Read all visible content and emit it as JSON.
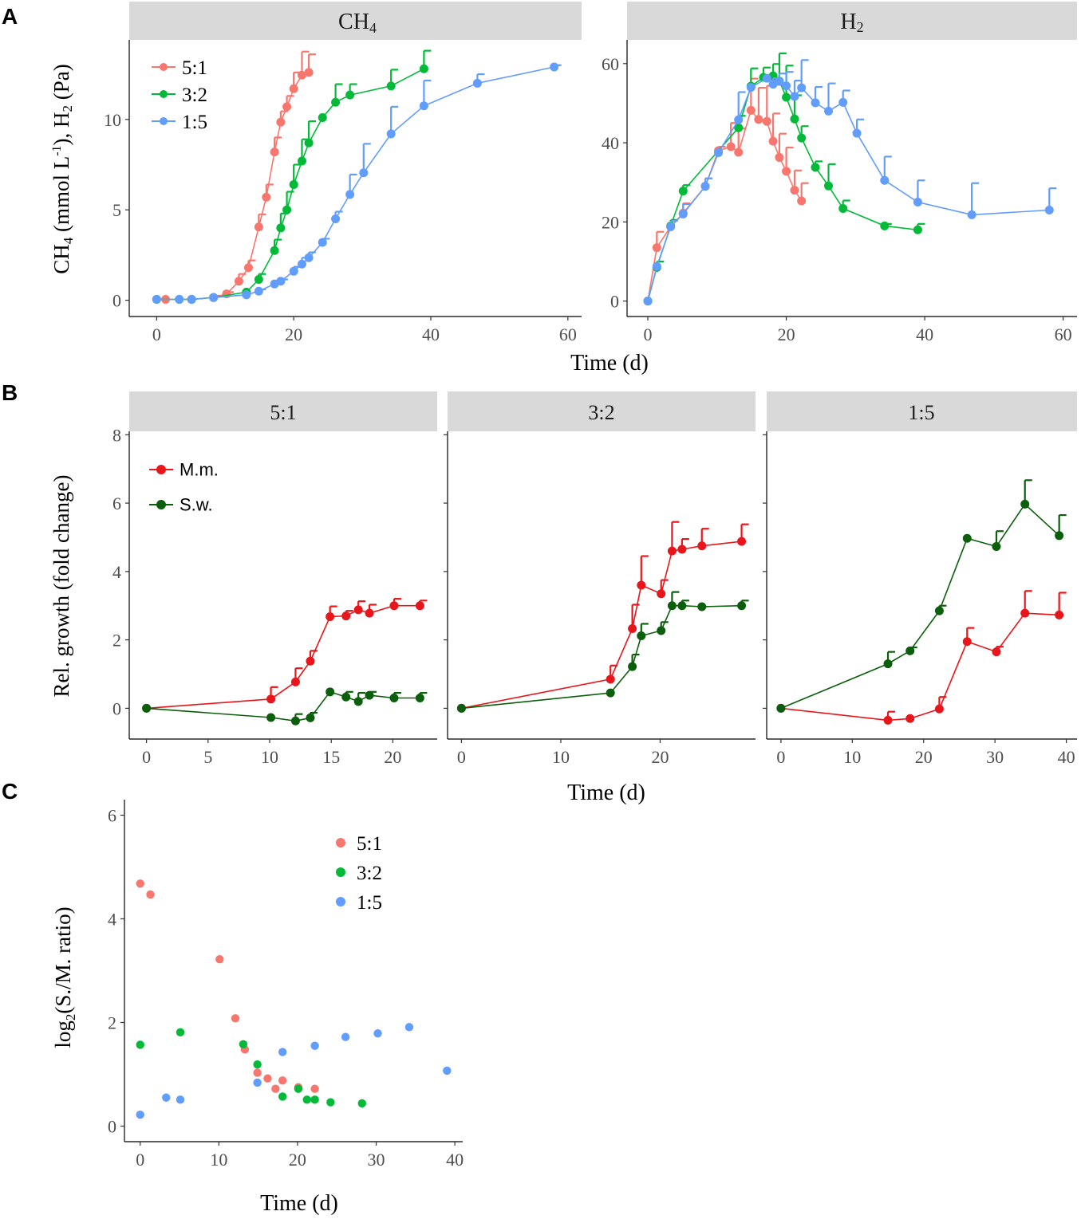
{
  "panel_labels": [
    "A",
    "B",
    "C"
  ],
  "chart_data": [
    {
      "id": "A-CH4",
      "type": "line",
      "strip_title": "CH4",
      "ylabel": "CH4 (mmol L-1), H2 (Pa)",
      "xlabel": "Time (d)",
      "xlim": [
        -4,
        62
      ],
      "ylim": [
        -0.9,
        14.4
      ],
      "xticks": [
        0,
        20,
        40,
        60
      ],
      "yticks": [
        0,
        5,
        10
      ],
      "legend": {
        "position": "top-left",
        "entries": [
          "5:1",
          "3:2",
          "1:5"
        ]
      },
      "series": [
        {
          "name": "5:1",
          "color": "#F8766D",
          "x": [
            0,
            1.3,
            5.1,
            8.3,
            10.2,
            12,
            13.4,
            14.9,
            16,
            17.2,
            18.1,
            19,
            20,
            21.2,
            22.2
          ],
          "y": [
            0.05,
            0.05,
            0.05,
            0.15,
            0.35,
            1.05,
            1.8,
            4.05,
            5.7,
            8.2,
            9.85,
            10.7,
            11.7,
            12.45,
            12.6
          ],
          "err": [
            0,
            0,
            0,
            0.1,
            0.1,
            0.4,
            0.4,
            0.7,
            0.7,
            0.8,
            0.6,
            0.6,
            0.9,
            1.3,
            1
          ]
        },
        {
          "name": "3:2",
          "color": "#00BA38",
          "x": [
            0,
            3.3,
            5.1,
            8.3,
            13.1,
            14.9,
            17.2,
            18.1,
            19,
            20,
            21.2,
            22.2,
            24.2,
            26.1,
            28.2,
            34.2,
            39
          ],
          "y": [
            0.05,
            0.05,
            0.05,
            0.15,
            0.45,
            1.15,
            2.75,
            4,
            5,
            6.4,
            7.7,
            8.7,
            10.1,
            10.95,
            11.35,
            11.85,
            12.8
          ],
          "err": [
            0,
            0,
            0,
            0,
            0,
            0.3,
            0.6,
            0.8,
            1,
            1.1,
            1.2,
            1.2,
            0,
            1,
            0.6,
            0.9,
            1
          ]
        },
        {
          "name": "1:5",
          "color": "#619CFF",
          "x": [
            0,
            3.3,
            5.1,
            8.3,
            13.1,
            14.9,
            17.2,
            18.1,
            20,
            21.2,
            22.2,
            24.2,
            26.1,
            28.2,
            30.2,
            34.2,
            39,
            46.8,
            58
          ],
          "y": [
            0.05,
            0.05,
            0.05,
            0.15,
            0.3,
            0.5,
            0.9,
            1.05,
            1.6,
            2,
            2.35,
            3.2,
            4.5,
            5.85,
            7.05,
            9.2,
            10.75,
            12,
            12.9
          ],
          "err": [
            0,
            0,
            0,
            0,
            0,
            0.1,
            0.1,
            0.1,
            0.25,
            0.35,
            0.3,
            0.2,
            0.4,
            1.1,
            1.6,
            1.5,
            1.4,
            0.5,
            0.1
          ]
        }
      ]
    },
    {
      "id": "A-H2",
      "type": "line",
      "strip_title": "H2",
      "xlabel": "Time (d)",
      "xlim": [
        -3,
        62
      ],
      "ylim": [
        -3.9,
        66
      ],
      "xticks": [
        0,
        20,
        40,
        60
      ],
      "yticks": [
        0,
        20,
        40,
        60
      ],
      "series": [
        {
          "name": "5:1",
          "color": "#F8766D",
          "x": [
            0,
            1.3,
            3.3,
            5.1,
            8.3,
            10.2,
            12,
            13.1,
            14.9,
            16,
            17.2,
            18.1,
            19,
            20,
            21.2,
            22.2
          ],
          "y": [
            0,
            13.5,
            18.8,
            22.2,
            29,
            38,
            39,
            37.6,
            48.2,
            45.9,
            45.4,
            40.4,
            36.3,
            32.8,
            28,
            25.3
          ],
          "err": [
            0,
            4,
            1.5,
            2.5,
            2,
            1,
            6,
            6,
            8,
            8,
            9,
            7,
            6,
            6,
            5,
            4.5
          ]
        },
        {
          "name": "3:2",
          "color": "#00BA38",
          "x": [
            0,
            1.3,
            3.3,
            5.1,
            13.1,
            14.9,
            16.7,
            18.1,
            19,
            20,
            21.2,
            22.2,
            24.2,
            26.1,
            28.2,
            34.2,
            39
          ],
          "y": [
            0,
            8.5,
            19,
            27.8,
            43.8,
            54.3,
            56.5,
            56.9,
            55.6,
            51.5,
            46,
            41.2,
            33.8,
            29.1,
            23.4,
            19,
            18
          ],
          "err": [
            0,
            1.5,
            1.5,
            1.5,
            3,
            4.5,
            2.5,
            3,
            7,
            8,
            6,
            3,
            1.5,
            5.5,
            2,
            0.5,
            1.5
          ]
        },
        {
          "name": "1:5",
          "color": "#619CFF",
          "x": [
            0,
            1.3,
            3.3,
            5.1,
            8.3,
            10.2,
            13.1,
            14.9,
            17.2,
            18.1,
            19,
            20,
            21.2,
            22.2,
            24.2,
            26.1,
            28.2,
            30.2,
            34.2,
            39,
            46.8,
            58
          ],
          "y": [
            0,
            8.8,
            18.8,
            22,
            29,
            37.5,
            45.8,
            54,
            56.3,
            54.8,
            55.5,
            54.4,
            51.7,
            53.9,
            50.1,
            48,
            50.2,
            42.4,
            30.5,
            25,
            21.8,
            23
          ],
          "err": [
            0,
            0,
            1.5,
            2.5,
            2,
            0,
            7,
            0,
            0,
            1.5,
            2,
            3.5,
            4,
            7,
            4,
            7,
            3,
            3.5,
            6,
            5.5,
            8,
            5.5
          ]
        }
      ]
    },
    {
      "id": "B-5:1",
      "type": "line",
      "strip_title": "5:1",
      "ylabel": "Rel. growth (fold change)",
      "xlabel": "Time (d)",
      "xlim": [
        -1.4,
        23.6
      ],
      "ylim": [
        -0.9,
        8.1
      ],
      "xticks": [
        0,
        5,
        10,
        15,
        20
      ],
      "yticks": [
        0,
        2,
        4,
        6,
        8
      ],
      "legend": {
        "position": "top-left",
        "entries": [
          "M.m.",
          "S.w."
        ]
      },
      "series": [
        {
          "name": "M.m.",
          "color": "#E8161B",
          "x": [
            0,
            10.1,
            12.1,
            13.3,
            14.9,
            16.2,
            17.2,
            18.1,
            20.1,
            22.2
          ],
          "y": [
            0,
            0.27,
            0.77,
            1.38,
            2.68,
            2.7,
            2.88,
            2.78,
            3,
            3
          ],
          "err": [
            0,
            0.35,
            0.4,
            0.3,
            0.3,
            0.15,
            0.25,
            0.25,
            0.2,
            0.15
          ]
        },
        {
          "name": "S.w.",
          "color": "#0B5E0B",
          "x": [
            0,
            10.1,
            12.1,
            13.3,
            14.9,
            16.2,
            17.2,
            18.1,
            20.1,
            22.2
          ],
          "y": [
            0,
            -0.27,
            -0.37,
            -0.28,
            0.48,
            0.33,
            0.2,
            0.38,
            0.3,
            0.3
          ],
          "err": [
            0,
            0,
            0.2,
            0.15,
            0,
            0.15,
            0.25,
            0.1,
            0.15,
            0.15
          ]
        }
      ]
    },
    {
      "id": "B-3:2",
      "type": "line",
      "strip_title": "3:2",
      "xlabel": "Time (d)",
      "xlim": [
        -1.4,
        29.6
      ],
      "ylim": [
        -0.9,
        8.1
      ],
      "xticks": [
        0,
        10,
        20
      ],
      "yticks": [
        0,
        2,
        4,
        6,
        8
      ],
      "series": [
        {
          "name": "M.m.",
          "color": "#E8161B",
          "x": [
            0,
            15,
            17.2,
            18.1,
            20.1,
            21.2,
            22.2,
            24.2,
            28.2
          ],
          "y": [
            0,
            0.85,
            2.33,
            3.6,
            3.35,
            4.6,
            4.65,
            4.75,
            4.88
          ],
          "err": [
            0,
            0.4,
            0.7,
            0.85,
            0.4,
            0.85,
            0.3,
            0.5,
            0.5
          ]
        },
        {
          "name": "S.w.",
          "color": "#0B5E0B",
          "x": [
            0,
            15,
            17.2,
            18.1,
            20.1,
            21.2,
            22.2,
            24.2,
            28.2
          ],
          "y": [
            0,
            0.45,
            1.22,
            2.12,
            2.27,
            3,
            3,
            2.97,
            3
          ],
          "err": [
            0,
            0,
            0.35,
            0.35,
            0.25,
            0.4,
            0.15,
            0,
            0.15
          ]
        }
      ]
    },
    {
      "id": "B-1:5",
      "type": "line",
      "strip_title": "1:5",
      "xlabel": "Time (d)",
      "xlim": [
        -2,
        41.5
      ],
      "ylim": [
        -0.9,
        8.1
      ],
      "xticks": [
        0,
        10,
        20,
        30,
        40
      ],
      "yticks": [
        0,
        2,
        4,
        6,
        8
      ],
      "series": [
        {
          "name": "M.m.",
          "color": "#E8161B",
          "x": [
            0,
            15,
            18.1,
            22.2,
            26.1,
            30.2,
            34.2,
            39
          ],
          "y": [
            0,
            -0.35,
            -0.3,
            -0.02,
            1.95,
            1.65,
            2.78,
            2.73
          ],
          "err": [
            0,
            0.25,
            0,
            0.35,
            0.4,
            0.15,
            0.65,
            0.65
          ]
        },
        {
          "name": "S.w.",
          "color": "#0B5E0B",
          "x": [
            0,
            15,
            18.1,
            22.2,
            26.1,
            30.2,
            34.2,
            39
          ],
          "y": [
            0,
            1.3,
            1.68,
            2.85,
            4.97,
            4.73,
            5.97,
            5.05
          ],
          "err": [
            0,
            0.35,
            0.1,
            0.15,
            0,
            0.45,
            0.7,
            0.6
          ]
        }
      ]
    },
    {
      "id": "C",
      "type": "scatter",
      "ylabel": "log2(S./M. ratio)",
      "xlabel": "Time (d)",
      "xlim": [
        -2,
        41
      ],
      "ylim": [
        -0.3,
        6.3
      ],
      "xticks": [
        0,
        10,
        20,
        30,
        40
      ],
      "yticks": [
        0,
        2,
        4,
        6
      ],
      "legend": {
        "position": "top-center",
        "entries": [
          "5:1",
          "3:2",
          "1:5"
        ]
      },
      "series": [
        {
          "name": "5:1",
          "color": "#F8766D",
          "x": [
            0,
            1.3,
            10.1,
            12.1,
            13.3,
            14.9,
            16.2,
            17.2,
            18.1,
            20.1,
            22.2
          ],
          "y": [
            4.68,
            4.47,
            3.22,
            2.08,
            1.48,
            1.03,
            0.92,
            0.72,
            0.88,
            0.75,
            0.72
          ]
        },
        {
          "name": "3:2",
          "color": "#00BA38",
          "x": [
            0,
            5.1,
            13.1,
            14.9,
            18.1,
            20.1,
            21.2,
            22.2,
            24.2,
            28.2
          ],
          "y": [
            1.57,
            1.81,
            1.58,
            1.19,
            0.57,
            0.72,
            0.51,
            0.51,
            0.46,
            0.44
          ]
        },
        {
          "name": "1:5",
          "color": "#619CFF",
          "x": [
            0,
            3.3,
            5.1,
            14.9,
            18.1,
            22.2,
            26.1,
            30.2,
            34.2,
            39
          ],
          "y": [
            0.22,
            0.55,
            0.51,
            0.84,
            1.43,
            1.55,
            1.72,
            1.79,
            1.91,
            1.07
          ]
        }
      ]
    }
  ]
}
